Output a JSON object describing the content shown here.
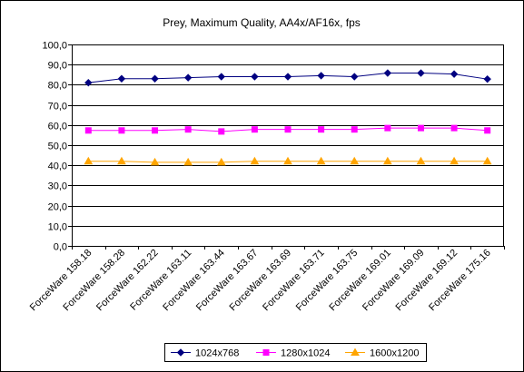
{
  "chart_data": {
    "type": "line",
    "title": "Prey, Maximum Quality, AA4x/AF16x, fps",
    "xlabel": "",
    "ylabel": "",
    "ylim": [
      0,
      100
    ],
    "yticks": [
      "0,0",
      "10,0",
      "20,0",
      "30,0",
      "40,0",
      "50,0",
      "60,0",
      "70,0",
      "80,0",
      "90,0",
      "100,0"
    ],
    "grid": true,
    "legend_position": "bottom",
    "categories": [
      "ForceWare 158.18",
      "ForceWare 158.28",
      "ForceWare 162.22",
      "ForceWare 163.11",
      "ForceWare 163.44",
      "ForceWare 163.67",
      "ForceWare 163.69",
      "ForceWare 163.71",
      "ForceWare 163.75",
      "ForceWare 169.01",
      "ForceWare 169.09",
      "ForceWare 169.12",
      "ForceWare 175.16"
    ],
    "series": [
      {
        "name": "1024x768",
        "color": "#000080",
        "marker": "diamond",
        "values": [
          81,
          83,
          83,
          83.5,
          84,
          84,
          84,
          84.5,
          84,
          85.8,
          85.8,
          85.3,
          82.8
        ]
      },
      {
        "name": "1280x1024",
        "color": "#FF00FF",
        "marker": "square",
        "values": [
          57.3,
          57.3,
          57.3,
          57.8,
          56.8,
          57.8,
          57.8,
          57.8,
          57.8,
          58.5,
          58.5,
          58.5,
          57.3
        ]
      },
      {
        "name": "1600x1200",
        "color": "#FFA500",
        "marker": "triangle",
        "values": [
          42,
          42,
          41.5,
          41.5,
          41.5,
          42,
          42,
          42,
          42,
          42,
          42,
          42,
          42
        ]
      }
    ]
  }
}
